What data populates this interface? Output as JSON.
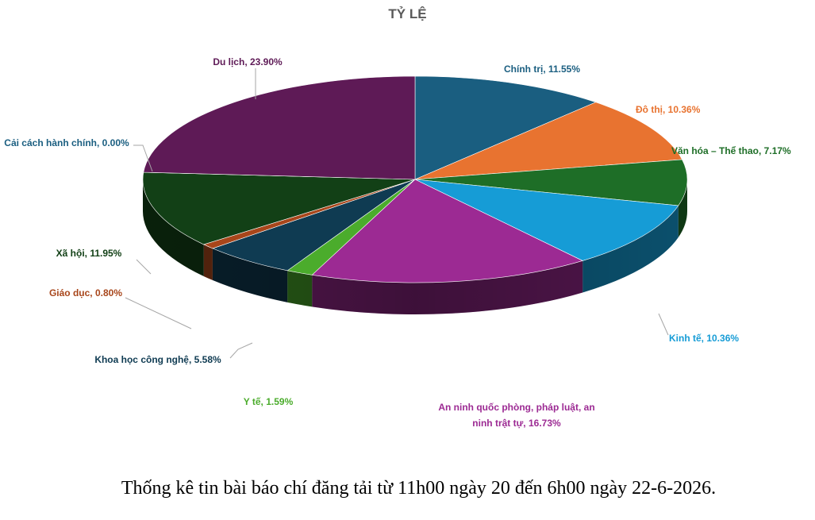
{
  "chart_data": {
    "type": "pie",
    "title": "TỶ LỆ",
    "slices": [
      {
        "name": "Chính trị",
        "value": 11.55,
        "label": "Chính trị, 11.55%",
        "color": "#1A5E80"
      },
      {
        "name": "Đô thị",
        "value": 10.36,
        "label": "Đô thị, 10.36%",
        "color": "#E87330"
      },
      {
        "name": "Văn hóa – Thể thao",
        "value": 7.17,
        "label": "Văn hóa – Thể thao, 7.17%",
        "color": "#1E6E27"
      },
      {
        "name": "Kinh tế",
        "value": 10.36,
        "label": "Kinh tế, 10.36%",
        "color": "#169CD6"
      },
      {
        "name": "An ninh quốc phòng, pháp luật, an ninh trật tự",
        "value": 16.73,
        "label_lines": [
          "An ninh quốc phòng, pháp luật, an",
          "ninh trật tự, 16.73%"
        ],
        "color": "#9C2A93"
      },
      {
        "name": "Y tế",
        "value": 1.59,
        "label": "Y tế, 1.59%",
        "color": "#4BAC2C"
      },
      {
        "name": "Khoa học công nghệ",
        "value": 5.58,
        "label": "Khoa học công nghệ, 5.58%",
        "color": "#0F3B52"
      },
      {
        "name": "Giáo dục",
        "value": 0.8,
        "label": "Giáo dục, 0.80%",
        "color": "#A8461B"
      },
      {
        "name": "Xã hội",
        "value": 11.95,
        "label": "Xã hội, 11.95%",
        "color": "#124016"
      },
      {
        "name": "Cải cách hành chính",
        "value": 0.0,
        "label": "Cải cách hành chính, 0.00%",
        "color": "#2C2C2C"
      },
      {
        "name": "Du lịch",
        "value": 23.9,
        "label": "Du lịch, 23.90%",
        "color": "#5E1A56"
      }
    ],
    "label_colors": [
      "#1A5E80",
      "#E87330",
      "#1E6E27",
      "#169CD6",
      "#9C2A93",
      "#4BAC2C",
      "#0F3B52",
      "#A8461B",
      "#124016",
      "#1A5E80",
      "#5E1A56"
    ]
  },
  "caption": "Thống kê tin bài báo chí đăng tải từ 11h00 ngày 20 đến 6h00 ngày 22-6-2026."
}
